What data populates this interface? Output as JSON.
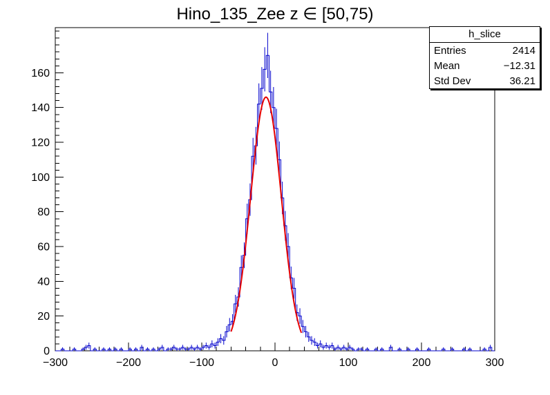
{
  "chart_data": {
    "type": "bar",
    "title": "Hino_135_Zee z ∈ [50,75)",
    "xlabel": "",
    "ylabel": "",
    "xlim": [
      -300,
      300
    ],
    "ylim": [
      0,
      186
    ],
    "grid": false,
    "bin_start": -300,
    "bin_width": 4,
    "hist_color": "#0000cc",
    "error_bars": true,
    "values": [
      0,
      0,
      1,
      0,
      0,
      0,
      1,
      0,
      0,
      1,
      2,
      3,
      0,
      1,
      0,
      0,
      1,
      0,
      1,
      0,
      1,
      0,
      1,
      0,
      0,
      1,
      0,
      1,
      0,
      2,
      0,
      1,
      0,
      1,
      0,
      1,
      2,
      0,
      1,
      1,
      2,
      1,
      1,
      2,
      1,
      1,
      2,
      1,
      2,
      1,
      2,
      3,
      2,
      4,
      3,
      5,
      7,
      6,
      11,
      15,
      17,
      27,
      31,
      48,
      55,
      76,
      87,
      112,
      118,
      142,
      151,
      162,
      170,
      149,
      140,
      128,
      110,
      88,
      72,
      60,
      42,
      36,
      22,
      20,
      14,
      11,
      8,
      6,
      5,
      3,
      4,
      2,
      3,
      2,
      3,
      1,
      2,
      1,
      2,
      1,
      2,
      1,
      0,
      1,
      1,
      0,
      1,
      0,
      0,
      1,
      0,
      1,
      0,
      0,
      2,
      0,
      0,
      1,
      0,
      0,
      1,
      0,
      0,
      1,
      0,
      0,
      0,
      1,
      0,
      0,
      0,
      0,
      1,
      0,
      0,
      1,
      0,
      0,
      0,
      1,
      0,
      1,
      0,
      0,
      0,
      0,
      1,
      0,
      2,
      0
    ],
    "x_tick_values": [
      -300,
      -200,
      -100,
      0,
      100,
      200,
      300
    ],
    "x_tick_labels": [
      "−300",
      "−200",
      "−100",
      "0",
      "100",
      "200",
      "300"
    ],
    "x_minor_step": 20,
    "y_tick_values": [
      0,
      20,
      40,
      60,
      80,
      100,
      120,
      140,
      160
    ],
    "y_tick_labels": [
      "0",
      "20",
      "40",
      "60",
      "80",
      "100",
      "120",
      "140",
      "160"
    ],
    "y_minor_step": 4,
    "fit": {
      "type": "gaussian",
      "amplitude": 146,
      "mean": -12.31,
      "sigma": 21,
      "range": [
        -60,
        36
      ],
      "color": "#e60000"
    }
  },
  "stats_box": {
    "header": "h_slice",
    "rows": [
      {
        "label": "Entries",
        "value": "2414"
      },
      {
        "label": "Mean",
        "value": "−12.31"
      },
      {
        "label": "Std Dev",
        "value": "36.21"
      }
    ]
  }
}
